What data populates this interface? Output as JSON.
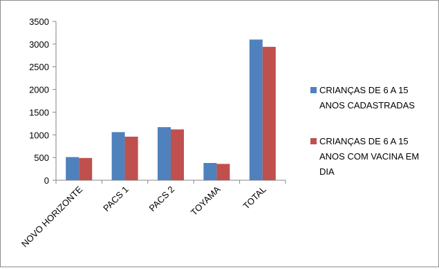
{
  "chart_data": {
    "type": "bar",
    "categories": [
      "NOVO HORIZONTE",
      "PACS 1",
      "PACS 2",
      "TOYAMA",
      "TOTAL"
    ],
    "series": [
      {
        "name": "CRIANÇAS DE 6 A 15 ANOS CADASTRADAS",
        "name_lines": [
          "CRIANÇAS DE 6 A 15",
          "ANOS CADASTRADAS"
        ],
        "color": "#4F81BD",
        "values": [
          510,
          1060,
          1170,
          380,
          3100
        ]
      },
      {
        "name": "CRIANÇAS DE 6 A 15 ANOS COM VACINA EM DIA",
        "name_lines": [
          "CRIANÇAS DE 6 A 15",
          "ANOS COM VACINA EM",
          "DIA"
        ],
        "color": "#C0504D",
        "values": [
          490,
          960,
          1120,
          360,
          2940
        ]
      }
    ],
    "ylim": [
      0,
      3500
    ],
    "yticks": [
      0,
      500,
      1000,
      1500,
      2000,
      2500,
      3000,
      3500
    ],
    "grid": false,
    "legend_position": "right",
    "title": "",
    "xlabel": "",
    "ylabel": ""
  }
}
